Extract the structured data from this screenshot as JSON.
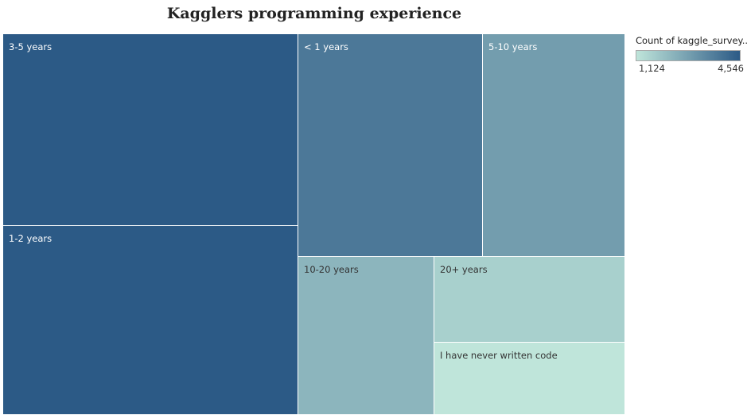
{
  "chart_data": {
    "type": "treemap",
    "title": "Kagglers programming experience",
    "color_legend": {
      "title": "Count of kaggle_survey..",
      "min_label": "1,124",
      "max_label": "4,546",
      "min": 1124,
      "max": 4546,
      "color_low": "#bfe5da",
      "color_high": "#2c5a86"
    },
    "categories": [
      "3-5 years",
      "1-2 years",
      "< 1 years",
      "5-10 years",
      "10-20 years",
      "20+ years",
      "I have never written code"
    ],
    "values": [
      4546,
      4546,
      3800,
      2900,
      2300,
      1650,
      1124
    ]
  }
}
